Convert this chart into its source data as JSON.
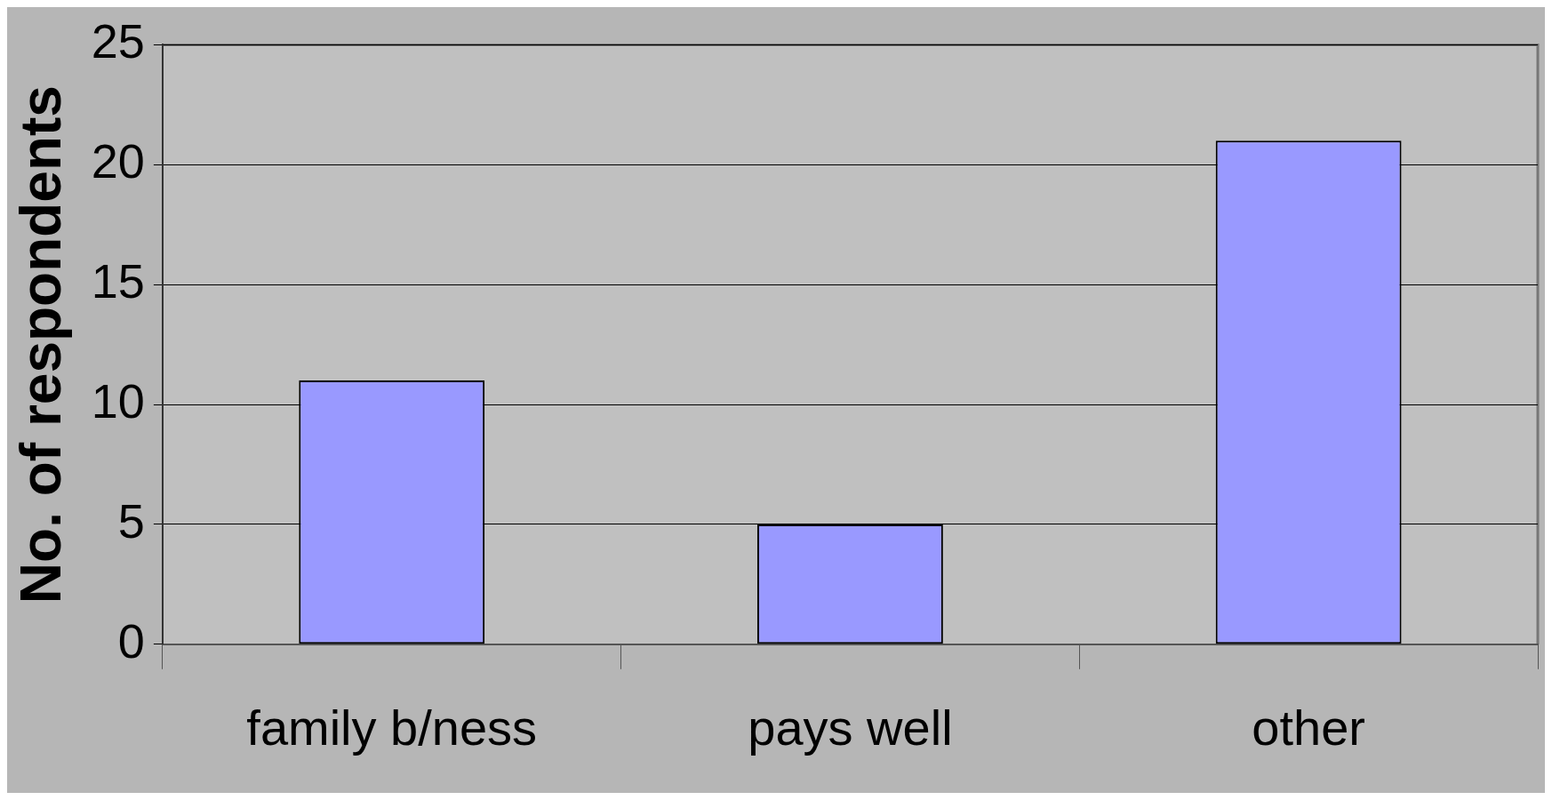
{
  "chart_data": {
    "type": "bar",
    "ylabel": "No. of respondents",
    "categories": [
      "family b/ness",
      "pays well",
      "other"
    ],
    "values": [
      11,
      5,
      21
    ],
    "color": "#9999ff",
    "ylim": [
      0,
      25
    ],
    "yticks": [
      0,
      5,
      10,
      15,
      20,
      25
    ],
    "grid": "y",
    "legend": false
  }
}
